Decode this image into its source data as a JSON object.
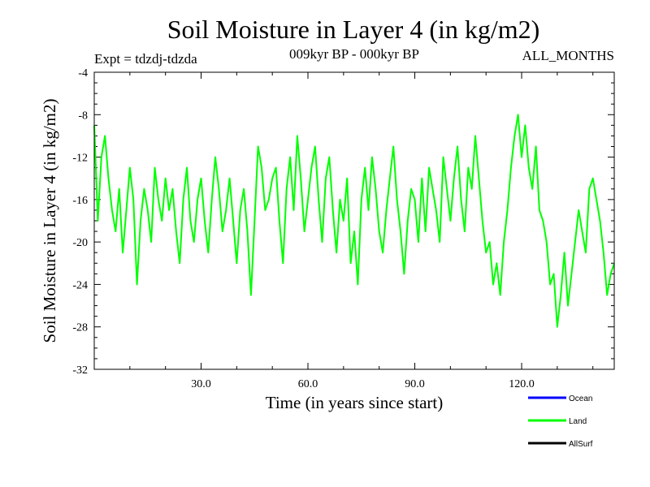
{
  "chart_data": {
    "type": "line",
    "title": "Soil Moisture in Layer 4 (in kg/m2)",
    "subtitle_left": "Expt = tdzdj-tdzda",
    "subtitle_center": "009kyr BP - 000kyr BP",
    "subtitle_right": "ALL_MONTHS",
    "xlabel": "Time (in years since start)",
    "ylabel": "Soil Moisture in Layer 4 (in kg/m2)",
    "xlim": [
      0,
      146
    ],
    "ylim": [
      -32,
      -4
    ],
    "x_ticks": [
      30,
      60,
      90,
      120
    ],
    "x_tick_labels": [
      "30.0",
      "60.0",
      "90.0",
      "120.0"
    ],
    "y_ticks": [
      -4,
      -8,
      -12,
      -16,
      -20,
      -24,
      -28,
      -32
    ],
    "y_tick_labels": [
      "-4",
      "-8",
      "-12",
      "-16",
      "-20",
      "-24",
      "-28",
      "-32"
    ],
    "legend": [
      {
        "name": "Ocean",
        "color": "#0000ff"
      },
      {
        "name": "Land",
        "color": "#00ff00"
      },
      {
        "name": "AllSurf",
        "color": "#000000"
      }
    ],
    "series": [
      {
        "name": "Land",
        "color": "#00ff00",
        "x": [
          0,
          1,
          2,
          3,
          4,
          5,
          6,
          7,
          8,
          9,
          10,
          11,
          12,
          13,
          14,
          15,
          16,
          17,
          18,
          19,
          20,
          21,
          22,
          23,
          24,
          25,
          26,
          27,
          28,
          29,
          30,
          31,
          32,
          33,
          34,
          35,
          36,
          37,
          38,
          39,
          40,
          41,
          42,
          43,
          44,
          45,
          46,
          47,
          48,
          49,
          50,
          51,
          52,
          53,
          54,
          55,
          56,
          57,
          58,
          59,
          60,
          61,
          62,
          63,
          64,
          65,
          66,
          67,
          68,
          69,
          70,
          71,
          72,
          73,
          74,
          75,
          76,
          77,
          78,
          79,
          80,
          81,
          82,
          83,
          84,
          85,
          86,
          87,
          88,
          89,
          90,
          91,
          92,
          93,
          94,
          95,
          96,
          97,
          98,
          99,
          100,
          101,
          102,
          103,
          104,
          105,
          106,
          107,
          108,
          109,
          110,
          111,
          112,
          113,
          114,
          115,
          116,
          117,
          118,
          119,
          120,
          121,
          122,
          123,
          124,
          125,
          126,
          127,
          128,
          129,
          130,
          131,
          132,
          133,
          134,
          135,
          136,
          137,
          138,
          139,
          140,
          141,
          142,
          143,
          144,
          145,
          146
        ],
        "values": [
          -9,
          -18,
          -12,
          -10,
          -14,
          -17,
          -19,
          -15,
          -21,
          -17,
          -13,
          -16,
          -24,
          -18,
          -15,
          -17,
          -20,
          -13,
          -16,
          -18,
          -14,
          -17,
          -15,
          -19,
          -22,
          -16,
          -13,
          -18,
          -20,
          -16,
          -14,
          -18,
          -21,
          -16,
          -12,
          -15,
          -19,
          -17,
          -14,
          -18,
          -22,
          -17,
          -15,
          -19,
          -25,
          -18,
          -11,
          -13,
          -17,
          -16,
          -14,
          -13,
          -18,
          -22,
          -15,
          -12,
          -17,
          -10,
          -14,
          -19,
          -16,
          -13,
          -11,
          -16,
          -20,
          -14,
          -12,
          -17,
          -21,
          -16,
          -18,
          -14,
          -22,
          -19,
          -24,
          -16,
          -13,
          -17,
          -12,
          -15,
          -19,
          -21,
          -17,
          -14,
          -11,
          -16,
          -19,
          -23,
          -18,
          -15,
          -16,
          -20,
          -14,
          -19,
          -13,
          -15,
          -17,
          -20,
          -12,
          -15,
          -18,
          -14,
          -11,
          -16,
          -19,
          -13,
          -15,
          -10,
          -14,
          -18,
          -21,
          -20,
          -24,
          -22,
          -25,
          -20,
          -17,
          -13,
          -10,
          -8,
          -12,
          -9,
          -13,
          -15,
          -11,
          -17,
          -18,
          -20,
          -24,
          -23,
          -28,
          -25,
          -21,
          -26,
          -23,
          -20,
          -17,
          -19,
          -21,
          -15,
          -14,
          -16,
          -18,
          -21,
          -25,
          -23,
          -22
        ]
      }
    ]
  }
}
